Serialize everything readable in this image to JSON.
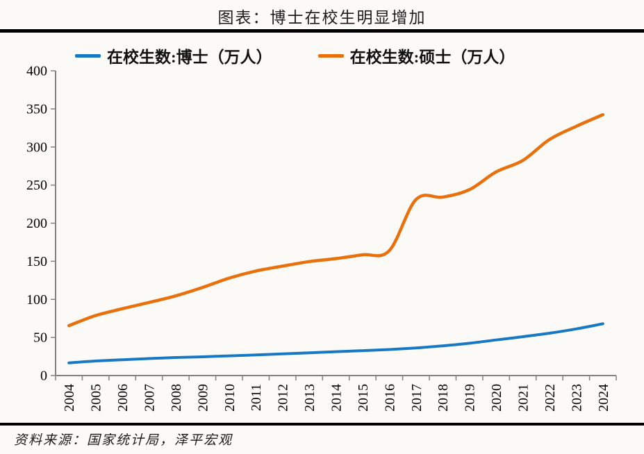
{
  "page": {
    "title": "图表：博士在校生明显增加",
    "source": "资料来源：国家统计局，泽平宏观"
  },
  "colors": {
    "doctor_line": "#1778C4",
    "master_line": "#E8710D",
    "axis": "#808080",
    "tick_label": "#000000",
    "rule": "#000000"
  },
  "chart_data": {
    "type": "line",
    "title": "图表：博士在校生明显增加",
    "categories": [
      "2004",
      "2005",
      "2006",
      "2007",
      "2008",
      "2009",
      "2010",
      "2011",
      "2012",
      "2013",
      "2014",
      "2015",
      "2016",
      "2017",
      "2018",
      "2019",
      "2020",
      "2021",
      "2022",
      "2023",
      "2024"
    ],
    "series": [
      {
        "name": "在校生数:博士（万人）",
        "color": "#1778C4",
        "values": [
          16.6,
          19.1,
          20.8,
          22.3,
          23.7,
          24.6,
          25.9,
          27.1,
          28.4,
          29.8,
          31.3,
          32.7,
          34.2,
          36.2,
          39.0,
          42.4,
          46.7,
          51.0,
          55.6,
          61.2,
          68.0
        ]
      },
      {
        "name": "在校生数:硕士（万人）",
        "color": "#E8710D",
        "values": [
          65.5,
          78.8,
          87.7,
          95.9,
          104.6,
          115.6,
          127.9,
          137.2,
          143.6,
          149.6,
          153.5,
          158.5,
          163.9,
          231.1,
          234.2,
          244.0,
          267.3,
          282.3,
          309.8,
          327.1,
          342.4
        ]
      }
    ],
    "ylim": [
      0,
      400
    ],
    "yticks": [
      0,
      50,
      100,
      150,
      200,
      250,
      300,
      350,
      400
    ],
    "x_tick_rotation": -90,
    "grid": false,
    "legend_position": "top",
    "smooth_lines": true
  }
}
